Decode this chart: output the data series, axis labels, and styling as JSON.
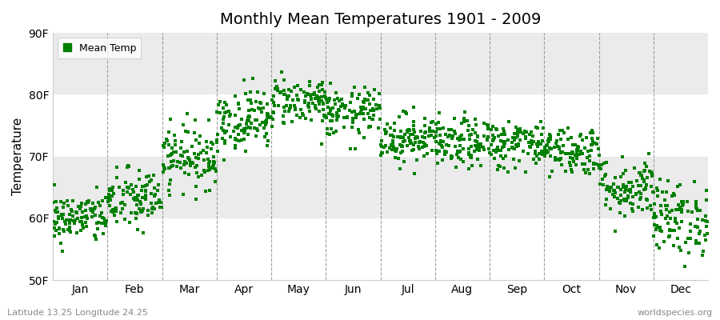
{
  "title": "Monthly Mean Temperatures 1901 - 2009",
  "ylabel": "Temperature",
  "xlabel_bottom_left": "Latitude 13.25 Longitude 24.25",
  "xlabel_bottom_right": "worldspecies.org",
  "legend_label": "Mean Temp",
  "ylim": [
    50,
    90
  ],
  "ytick_labels": [
    "50F",
    "60F",
    "70F",
    "80F",
    "90F"
  ],
  "ytick_values": [
    50,
    60,
    70,
    80,
    90
  ],
  "months": [
    "Jan",
    "Feb",
    "Mar",
    "Apr",
    "May",
    "Jun",
    "Jul",
    "Aug",
    "Sep",
    "Oct",
    "Nov",
    "Dec"
  ],
  "dot_color": "#008000",
  "background_color": "#ffffff",
  "band_color": "#ebebeb",
  "month_means": [
    60,
    63,
    70,
    76,
    79,
    77,
    73,
    72,
    72,
    71,
    65,
    60
  ],
  "month_stds": [
    2.0,
    2.5,
    2.5,
    2.5,
    2.0,
    2.0,
    2.0,
    2.0,
    2.0,
    2.0,
    2.5,
    3.0
  ],
  "n_years": 109,
  "seed": 42,
  "dot_size": 6,
  "dashed_line_color": "#888888",
  "title_fontsize": 14,
  "axis_fontsize": 10,
  "ylabel_fontsize": 11
}
